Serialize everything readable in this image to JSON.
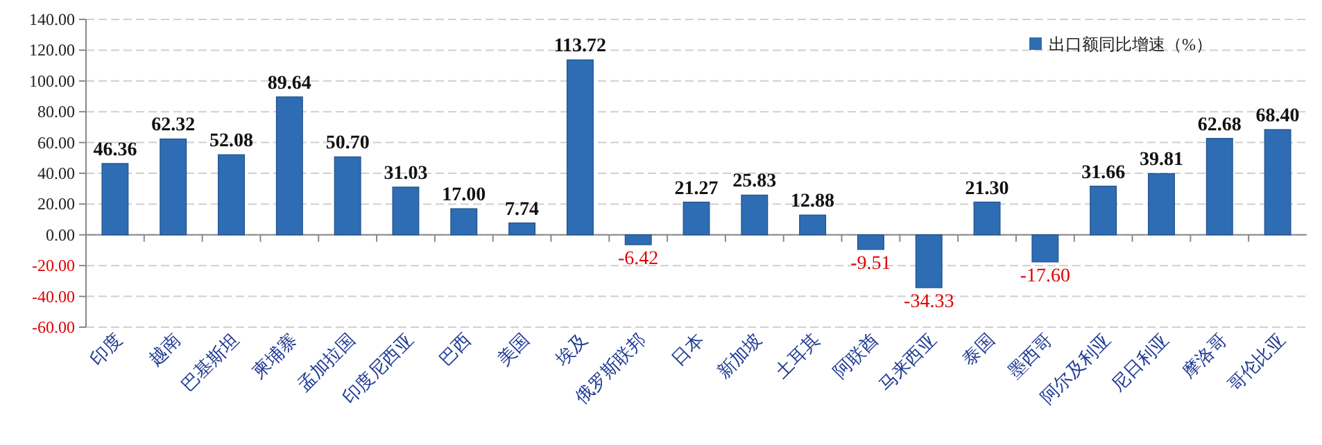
{
  "chart_data": {
    "type": "bar",
    "categories": [
      "印度",
      "越南",
      "巴基斯坦",
      "柬埔寨",
      "孟加拉国",
      "印度尼西亚",
      "巴西",
      "美国",
      "埃及",
      "俄罗斯联邦",
      "日本",
      "新加坡",
      "土耳其",
      "阿联酋",
      "马来西亚",
      "泰国",
      "墨西哥",
      "阿尔及利亚",
      "尼日利亚",
      "摩洛哥",
      "哥伦比亚"
    ],
    "series": [
      {
        "name": "出口额同比增速（%）",
        "color": "#2e6db4",
        "values": [
          46.36,
          62.32,
          52.08,
          89.64,
          50.7,
          31.03,
          17.0,
          7.74,
          113.72,
          -6.42,
          21.27,
          25.83,
          12.88,
          -9.51,
          -34.33,
          21.3,
          -17.6,
          31.66,
          39.81,
          62.68,
          68.4
        ],
        "value_labels": [
          "46.36",
          "62.32",
          "52.08",
          "89.64",
          "50.70",
          "31.03",
          "17.00",
          "7.74",
          "113.72",
          "-6.42",
          "21.27",
          "25.83",
          "12.88",
          "-9.51",
          "-34.33",
          "21.30",
          "-17.60",
          "31.66",
          "39.81",
          "62.68",
          "68.40"
        ]
      }
    ],
    "ylim": [
      -60,
      140
    ],
    "yticks": [
      {
        "value": -60,
        "label": "-60.00"
      },
      {
        "value": -40,
        "label": "-40.00"
      },
      {
        "value": -20,
        "label": "-20.00"
      },
      {
        "value": 0,
        "label": "0.00"
      },
      {
        "value": 20,
        "label": "20.00"
      },
      {
        "value": 40,
        "label": "40.00"
      },
      {
        "value": 60,
        "label": "60.00"
      },
      {
        "value": 80,
        "label": "80.00"
      },
      {
        "value": 100,
        "label": "100.00"
      },
      {
        "value": 120,
        "label": "120.00"
      },
      {
        "value": 140,
        "label": "140.00"
      }
    ],
    "grid": "y",
    "legend": "top right"
  }
}
